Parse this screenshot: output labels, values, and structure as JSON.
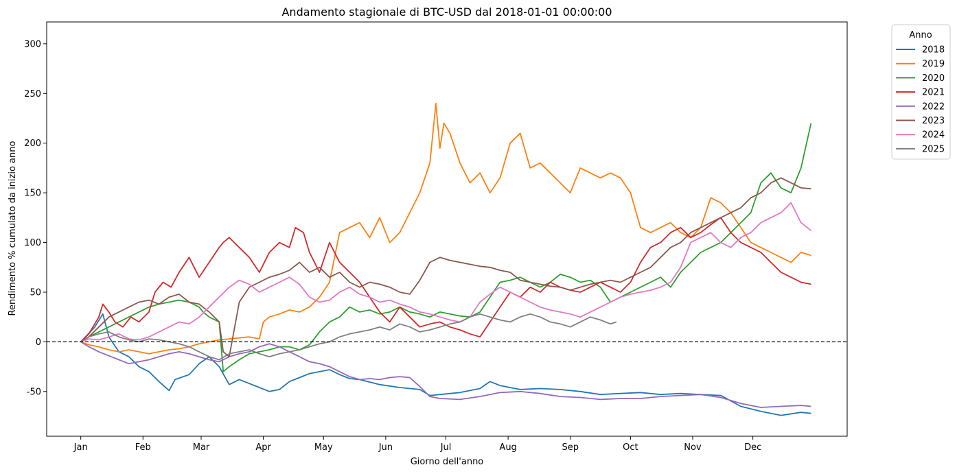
{
  "chart_data": {
    "type": "line",
    "title": "Andamento stagionale di BTC-USD dal 2018-01-01 00:00:00",
    "xlabel": "Giorno dell'anno",
    "ylabel": "Rendimento % cumulato da inizio anno",
    "x_ticks": [
      {
        "label": "Jan",
        "day": 1
      },
      {
        "label": "Feb",
        "day": 32
      },
      {
        "label": "Mar",
        "day": 61
      },
      {
        "label": "Apr",
        "day": 92
      },
      {
        "label": "May",
        "day": 122
      },
      {
        "label": "Jun",
        "day": 153
      },
      {
        "label": "Jul",
        "day": 183
      },
      {
        "label": "Aug",
        "day": 214
      },
      {
        "label": "Sep",
        "day": 245
      },
      {
        "label": "Oct",
        "day": 275
      },
      {
        "label": "Nov",
        "day": 306
      },
      {
        "label": "Dec",
        "day": 336
      }
    ],
    "y_ticks": [
      -50,
      0,
      50,
      100,
      150,
      200,
      250,
      300
    ],
    "xlim": [
      -16,
      383
    ],
    "ylim": [
      -95,
      322
    ],
    "reference_line": {
      "y": 0,
      "style": "dashed"
    },
    "legend": {
      "title": "Anno",
      "placement": "outside right"
    },
    "series": [
      {
        "name": "2018",
        "color": "#1f77b4",
        "x": [
          1,
          8,
          12,
          15,
          20,
          25,
          30,
          35,
          40,
          45,
          48,
          55,
          60,
          65,
          70,
          75,
          80,
          85,
          90,
          95,
          100,
          105,
          110,
          115,
          120,
          125,
          130,
          135,
          140,
          150,
          160,
          170,
          175,
          180,
          190,
          200,
          205,
          210,
          220,
          230,
          240,
          250,
          260,
          270,
          280,
          290,
          300,
          310,
          320,
          330,
          340,
          350,
          360,
          365
        ],
        "y": [
          0,
          15,
          28,
          5,
          -10,
          -15,
          -25,
          -30,
          -40,
          -49,
          -38,
          -33,
          -22,
          -15,
          -25,
          -43,
          -38,
          -42,
          -46,
          -50,
          -48,
          -40,
          -36,
          -32,
          -30,
          -28,
          -33,
          -37,
          -38,
          -43,
          -46,
          -48,
          -54,
          -53,
          -51,
          -47,
          -40,
          -44,
          -48,
          -47,
          -48,
          -50,
          -53,
          -52,
          -51,
          -53,
          -52,
          -53,
          -54,
          -65,
          -70,
          -74,
          -71,
          -72
        ]
      },
      {
        "name": "2019",
        "color": "#ff7f0e",
        "x": [
          1,
          5,
          10,
          15,
          20,
          25,
          30,
          35,
          40,
          45,
          50,
          55,
          60,
          65,
          70,
          75,
          80,
          85,
          90,
          92,
          95,
          100,
          105,
          110,
          115,
          120,
          125,
          128,
          130,
          135,
          140,
          145,
          150,
          155,
          160,
          165,
          170,
          175,
          178,
          180,
          182,
          185,
          190,
          195,
          200,
          205,
          210,
          215,
          220,
          225,
          230,
          235,
          240,
          245,
          250,
          255,
          260,
          265,
          270,
          275,
          280,
          285,
          290,
          295,
          300,
          305,
          310,
          315,
          320,
          325,
          330,
          335,
          340,
          345,
          350,
          355,
          360,
          365
        ],
        "y": [
          0,
          -3,
          -5,
          -8,
          -10,
          -8,
          -10,
          -12,
          -10,
          -8,
          -7,
          -5,
          -2,
          0,
          2,
          3,
          4,
          5,
          3,
          20,
          25,
          28,
          32,
          30,
          35,
          45,
          60,
          90,
          110,
          115,
          120,
          105,
          125,
          100,
          110,
          130,
          150,
          180,
          240,
          195,
          220,
          210,
          180,
          160,
          170,
          150,
          165,
          200,
          210,
          175,
          180,
          170,
          160,
          150,
          175,
          170,
          165,
          170,
          165,
          150,
          115,
          110,
          115,
          120,
          110,
          105,
          115,
          145,
          140,
          130,
          115,
          100,
          95,
          90,
          85,
          80,
          90,
          87
        ]
      },
      {
        "name": "2020",
        "color": "#2ca02c",
        "x": [
          1,
          5,
          10,
          15,
          20,
          25,
          30,
          35,
          40,
          45,
          50,
          55,
          60,
          62,
          65,
          70,
          72,
          75,
          80,
          85,
          90,
          95,
          100,
          105,
          110,
          115,
          120,
          125,
          130,
          135,
          140,
          145,
          150,
          155,
          160,
          165,
          170,
          175,
          180,
          185,
          190,
          195,
          200,
          205,
          210,
          215,
          220,
          225,
          230,
          235,
          240,
          245,
          250,
          255,
          260,
          265,
          270,
          275,
          280,
          285,
          290,
          295,
          300,
          305,
          310,
          315,
          320,
          325,
          330,
          335,
          340,
          345,
          350,
          355,
          360,
          365
        ],
        "y": [
          0,
          5,
          10,
          15,
          20,
          25,
          30,
          35,
          38,
          40,
          42,
          40,
          35,
          30,
          25,
          20,
          -30,
          -25,
          -18,
          -12,
          -10,
          -8,
          -5,
          -5,
          -8,
          -3,
          10,
          20,
          25,
          35,
          30,
          32,
          28,
          30,
          35,
          30,
          28,
          25,
          30,
          28,
          26,
          25,
          30,
          45,
          60,
          62,
          65,
          60,
          55,
          60,
          68,
          65,
          60,
          62,
          55,
          40,
          45,
          50,
          55,
          60,
          65,
          55,
          70,
          80,
          90,
          95,
          100,
          110,
          120,
          130,
          160,
          170,
          155,
          150,
          175,
          220
        ]
      },
      {
        "name": "2021",
        "color": "#d62728",
        "x": [
          1,
          5,
          10,
          12,
          15,
          18,
          22,
          26,
          30,
          35,
          38,
          42,
          46,
          50,
          55,
          60,
          65,
          70,
          72,
          75,
          80,
          85,
          90,
          95,
          100,
          105,
          108,
          112,
          115,
          120,
          125,
          130,
          135,
          140,
          145,
          150,
          155,
          160,
          165,
          170,
          175,
          180,
          185,
          190,
          195,
          200,
          205,
          210,
          215,
          220,
          225,
          230,
          235,
          240,
          245,
          250,
          255,
          260,
          265,
          270,
          275,
          280,
          285,
          290,
          295,
          300,
          305,
          310,
          315,
          320,
          325,
          330,
          335,
          340,
          345,
          350,
          355,
          360,
          365
        ],
        "y": [
          0,
          8,
          25,
          38,
          30,
          20,
          15,
          25,
          20,
          30,
          50,
          60,
          55,
          70,
          85,
          65,
          80,
          95,
          100,
          105,
          95,
          85,
          70,
          90,
          100,
          95,
          115,
          110,
          90,
          70,
          100,
          80,
          70,
          60,
          45,
          30,
          20,
          35,
          25,
          15,
          18,
          20,
          15,
          12,
          8,
          5,
          20,
          35,
          50,
          45,
          55,
          50,
          60,
          55,
          52,
          50,
          55,
          60,
          55,
          50,
          60,
          80,
          95,
          100,
          110,
          115,
          105,
          110,
          118,
          125,
          110,
          100,
          95,
          90,
          80,
          70,
          65,
          60,
          58
        ]
      },
      {
        "name": "2022",
        "color": "#9467bd",
        "x": [
          1,
          5,
          10,
          15,
          20,
          25,
          30,
          35,
          40,
          45,
          50,
          55,
          60,
          65,
          70,
          75,
          80,
          85,
          90,
          95,
          100,
          105,
          110,
          115,
          120,
          125,
          130,
          135,
          140,
          145,
          150,
          155,
          160,
          165,
          170,
          175,
          180,
          190,
          200,
          210,
          220,
          230,
          240,
          250,
          260,
          270,
          280,
          290,
          300,
          310,
          320,
          330,
          340,
          350,
          360,
          365
        ],
        "y": [
          0,
          -5,
          -10,
          -14,
          -18,
          -22,
          -20,
          -18,
          -15,
          -12,
          -10,
          -12,
          -15,
          -18,
          -20,
          -15,
          -12,
          -10,
          -5,
          -2,
          -5,
          -10,
          -15,
          -20,
          -22,
          -25,
          -30,
          -35,
          -38,
          -37,
          -38,
          -36,
          -35,
          -36,
          -45,
          -55,
          -57,
          -58,
          -55,
          -51,
          -50,
          -52,
          -55,
          -56,
          -58,
          -57,
          -57,
          -55,
          -54,
          -53,
          -56,
          -62,
          -66,
          -65,
          -64,
          -65
        ]
      },
      {
        "name": "2023",
        "color": "#8c564b",
        "x": [
          1,
          5,
          10,
          15,
          20,
          25,
          30,
          35,
          40,
          45,
          50,
          55,
          60,
          65,
          70,
          72,
          75,
          80,
          85,
          90,
          95,
          100,
          105,
          110,
          115,
          120,
          125,
          130,
          135,
          140,
          145,
          150,
          155,
          160,
          165,
          170,
          175,
          180,
          185,
          190,
          195,
          200,
          205,
          210,
          215,
          220,
          225,
          230,
          235,
          240,
          245,
          250,
          255,
          260,
          265,
          270,
          275,
          280,
          285,
          290,
          295,
          300,
          305,
          310,
          315,
          320,
          325,
          330,
          335,
          340,
          345,
          350,
          355,
          360,
          365
        ],
        "y": [
          0,
          5,
          15,
          25,
          30,
          35,
          40,
          42,
          38,
          45,
          48,
          40,
          38,
          30,
          20,
          -10,
          -15,
          40,
          55,
          60,
          65,
          68,
          72,
          80,
          70,
          75,
          65,
          70,
          60,
          55,
          60,
          58,
          55,
          50,
          48,
          62,
          80,
          85,
          82,
          80,
          78,
          76,
          75,
          72,
          70,
          62,
          60,
          58,
          56,
          55,
          52,
          55,
          58,
          60,
          62,
          60,
          65,
          70,
          75,
          85,
          95,
          100,
          110,
          115,
          120,
          125,
          130,
          135,
          145,
          150,
          160,
          165,
          160,
          155,
          154
        ]
      },
      {
        "name": "2024",
        "color": "#e377c2",
        "x": [
          1,
          5,
          10,
          15,
          20,
          25,
          30,
          35,
          40,
          45,
          50,
          55,
          60,
          65,
          70,
          75,
          80,
          85,
          90,
          95,
          100,
          105,
          110,
          115,
          120,
          125,
          130,
          135,
          140,
          145,
          150,
          155,
          160,
          165,
          170,
          175,
          180,
          185,
          190,
          195,
          200,
          205,
          210,
          215,
          220,
          225,
          230,
          235,
          240,
          245,
          250,
          255,
          260,
          265,
          270,
          275,
          280,
          285,
          290,
          295,
          300,
          305,
          310,
          315,
          320,
          325,
          330,
          335,
          340,
          345,
          350,
          355,
          360,
          365
        ],
        "y": [
          0,
          3,
          2,
          5,
          8,
          3,
          2,
          5,
          10,
          15,
          20,
          18,
          25,
          35,
          45,
          55,
          62,
          58,
          50,
          55,
          60,
          65,
          58,
          45,
          40,
          42,
          50,
          55,
          48,
          45,
          40,
          42,
          38,
          35,
          30,
          28,
          25,
          22,
          20,
          25,
          40,
          48,
          55,
          50,
          45,
          40,
          35,
          32,
          30,
          28,
          25,
          30,
          35,
          40,
          45,
          48,
          50,
          52,
          55,
          60,
          75,
          100,
          105,
          110,
          100,
          95,
          105,
          110,
          120,
          125,
          130,
          140,
          120,
          112
        ]
      },
      {
        "name": "2025",
        "color": "#7f7f7f",
        "x": [
          1,
          5,
          10,
          15,
          20,
          25,
          30,
          35,
          40,
          45,
          50,
          55,
          60,
          65,
          70,
          75,
          80,
          85,
          90,
          95,
          100,
          105,
          110,
          115,
          120,
          125,
          130,
          135,
          140,
          145,
          150,
          155,
          160,
          165,
          170,
          175,
          180,
          185,
          190,
          195,
          200,
          205,
          210,
          215,
          220,
          225,
          230,
          235,
          240,
          245,
          250,
          255,
          260,
          265,
          268
        ],
        "y": [
          0,
          5,
          8,
          10,
          5,
          2,
          0,
          3,
          2,
          0,
          -2,
          -5,
          -10,
          -15,
          -18,
          -12,
          -10,
          -8,
          -12,
          -15,
          -12,
          -10,
          -8,
          -5,
          -2,
          0,
          5,
          8,
          10,
          12,
          15,
          12,
          18,
          15,
          10,
          12,
          15,
          18,
          20,
          25,
          28,
          25,
          22,
          20,
          25,
          28,
          25,
          20,
          18,
          15,
          20,
          25,
          22,
          18,
          20
        ]
      }
    ]
  }
}
